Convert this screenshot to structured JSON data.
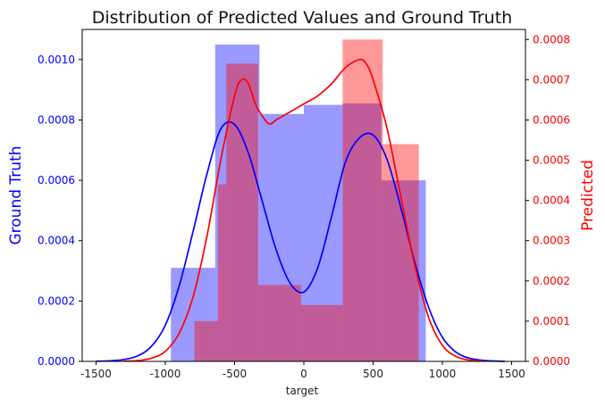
{
  "chart_data": {
    "type": "bar",
    "title": "Distribution of Predicted Values and Ground Truth",
    "xlabel": "target",
    "ylabel_left": "Ground Truth",
    "ylabel_right": "Predicted",
    "xlim": [
      -1600,
      1600
    ],
    "ylim_left": [
      0,
      0.0011
    ],
    "ylim_right": [
      0,
      0.000825
    ],
    "x_ticks": [
      -1500,
      -1000,
      -500,
      0,
      500,
      1000,
      1500
    ],
    "x_tick_labels": [
      "-1500",
      "-1000",
      "-500",
      "0",
      "500",
      "1000",
      "1500"
    ],
    "y_ticks_left": [
      0,
      0.0002,
      0.0004,
      0.0006,
      0.0008,
      0.001
    ],
    "y_tick_labels_left": [
      "0.0000",
      "0.0002",
      "0.0004",
      "0.0006",
      "0.0008",
      "0.0010"
    ],
    "y_ticks_right": [
      0,
      0.0001,
      0.0002,
      0.0003,
      0.0004,
      0.0005,
      0.0006,
      0.0007,
      0.0008
    ],
    "y_tick_labels_right": [
      "0.0000",
      "0.0001",
      "0.0002",
      "0.0003",
      "0.0004",
      "0.0005",
      "0.0006",
      "0.0007",
      "0.0008"
    ],
    "grid": false,
    "series": [
      {
        "axis": "left",
        "color": "#0000ff",
        "hist_bins": [
          {
            "x0": -960,
            "x1": -640,
            "value": 0.00031
          },
          {
            "x0": -640,
            "x1": -320,
            "value": 0.00105
          },
          {
            "x0": -320,
            "x1": 0,
            "value": 0.00082
          },
          {
            "x0": 0,
            "x1": 280,
            "value": 0.00085
          },
          {
            "x0": 280,
            "x1": 560,
            "value": 0.000855
          },
          {
            "x0": 560,
            "x1": 880,
            "value": 0.0006
          }
        ],
        "kde_x": [
          -1500,
          -1400,
          -1300,
          -1200,
          -1100,
          -1000,
          -900,
          -800,
          -700,
          -600,
          -500,
          -400,
          -300,
          -200,
          -100,
          0,
          100,
          200,
          300,
          400,
          500,
          600,
          700,
          800,
          900,
          1000,
          1100,
          1200,
          1300,
          1400,
          1450
        ],
        "kde_y": [
          5e-07,
          2e-06,
          6e-06,
          1.8e-05,
          5e-05,
          0.00012,
          0.00025,
          0.00043,
          0.00062,
          0.00077,
          0.000785,
          0.00069,
          0.00053,
          0.00037,
          0.00026,
          0.00023,
          0.00031,
          0.00048,
          0.00066,
          0.00074,
          0.00075,
          0.00067,
          0.00051,
          0.00033,
          0.00018,
          8e-05,
          3e-05,
          1e-05,
          3e-06,
          8e-07,
          3e-07
        ]
      },
      {
        "axis": "right",
        "color": "#ff0000",
        "hist_bins": [
          {
            "x0": -790,
            "x1": -620,
            "value": 0.0001
          },
          {
            "x0": -620,
            "x1": -560,
            "value": 0.00044
          },
          {
            "x0": -560,
            "x1": -330,
            "value": 0.00074
          },
          {
            "x0": -330,
            "x1": -20,
            "value": 0.00019
          },
          {
            "x0": -20,
            "x1": 280,
            "value": 0.00014
          },
          {
            "x0": 280,
            "x1": 570,
            "value": 0.0008
          },
          {
            "x0": 570,
            "x1": 830,
            "value": 0.00054
          }
        ],
        "kde_x": [
          -1300,
          -1200,
          -1100,
          -1000,
          -900,
          -800,
          -700,
          -600,
          -500,
          -450,
          -400,
          -350,
          -300,
          -250,
          -200,
          -150,
          -100,
          -50,
          0,
          100,
          200,
          300,
          400,
          450,
          500,
          600,
          700,
          800,
          900,
          1000,
          1100,
          1200,
          1300
        ],
        "kde_y": [
          5e-07,
          2e-06,
          8e-06,
          2.5e-05,
          7e-05,
          0.00016,
          0.00031,
          0.0005,
          0.00066,
          0.0007,
          0.00069,
          0.00064,
          0.00061,
          0.00059,
          0.0006,
          0.00061,
          0.00062,
          0.00063,
          0.00064,
          0.00066,
          0.00069,
          0.00073,
          0.00075,
          0.00074,
          0.0007,
          0.00058,
          0.00041,
          0.00024,
          0.00011,
          4e-05,
          1.2e-05,
          3e-06,
          8e-07
        ]
      }
    ]
  }
}
